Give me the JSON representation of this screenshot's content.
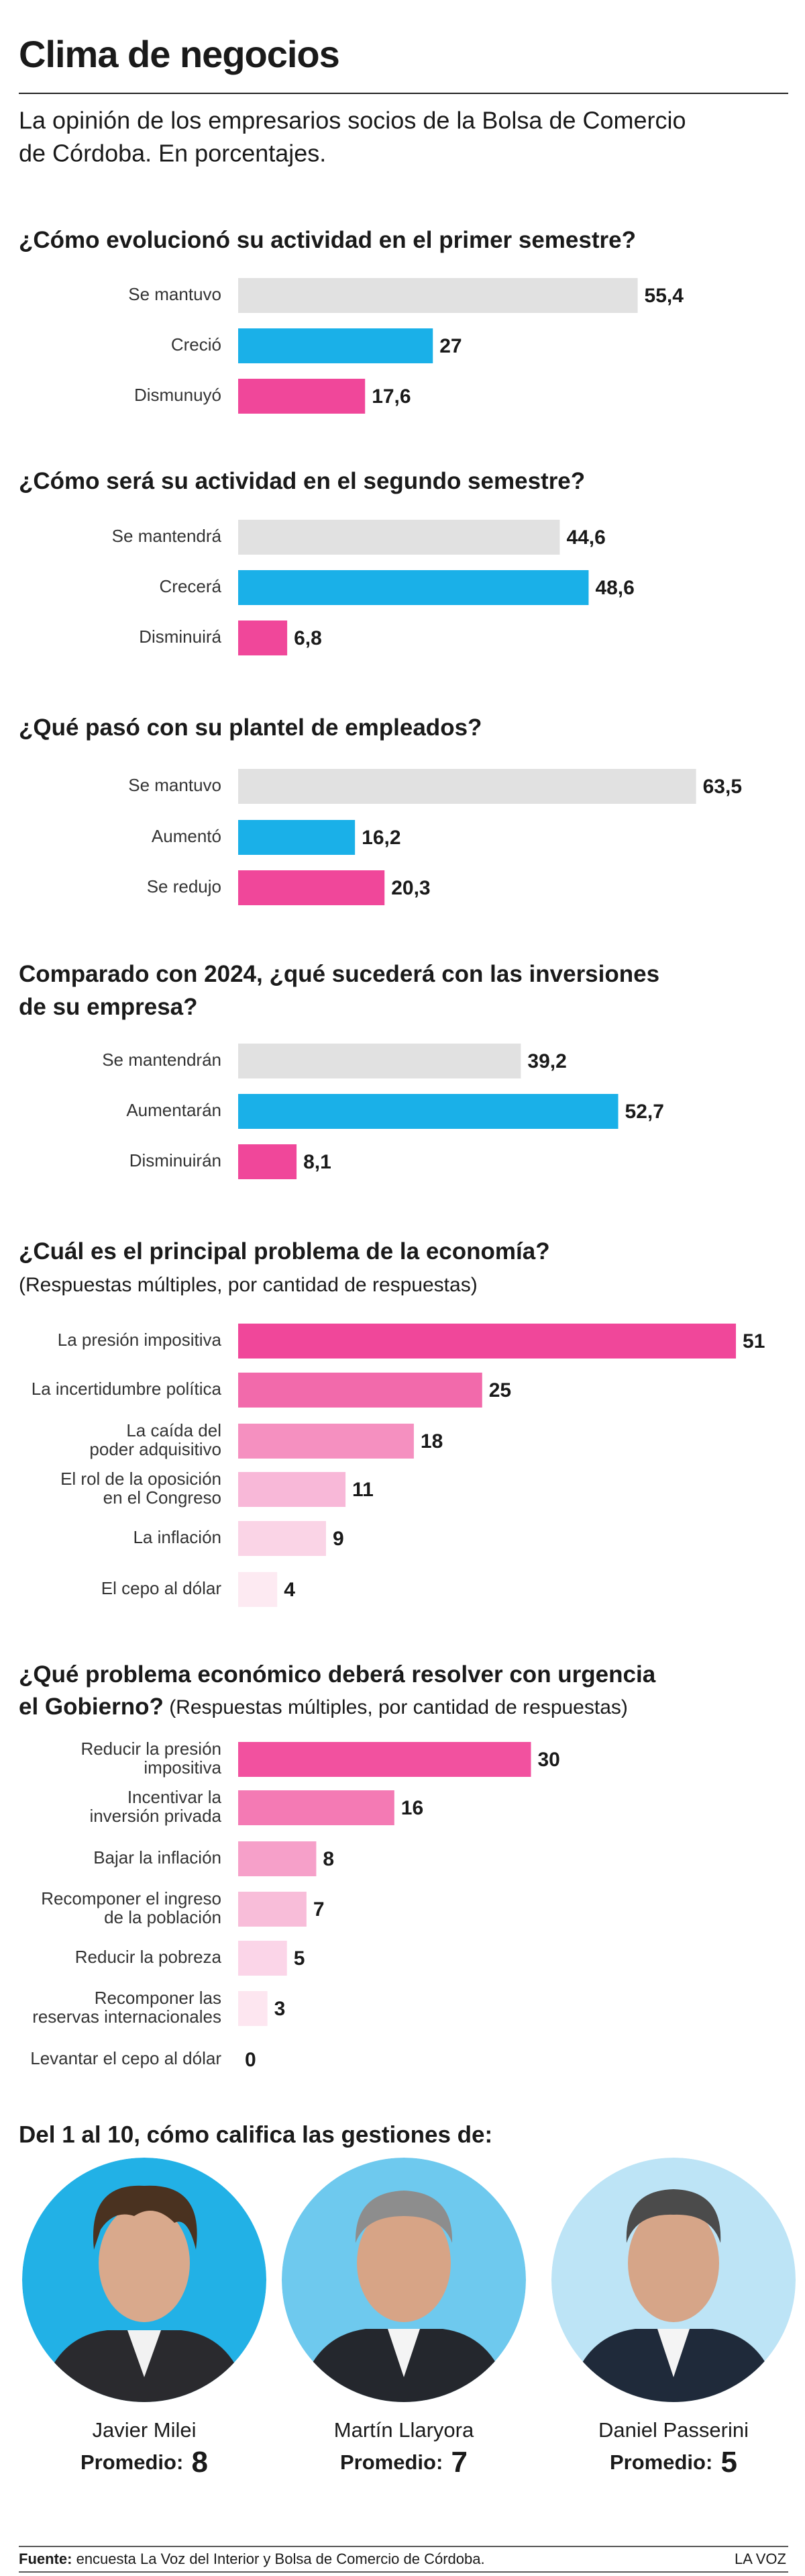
{
  "header": {
    "title": "Clima de negocios",
    "subtitle": [
      "La opinión de los empresarios socios de la Bolsa de Comercio",
      "de Córdoba. En porcentajes."
    ]
  },
  "chart_data": [
    {
      "type": "bar",
      "title": [
        "¿Cómo evolucionó su actividad en el primer semestre?"
      ],
      "categories": [
        "Se mantuvo",
        "Creció",
        "Dismunuyó"
      ],
      "values": [
        55.4,
        27,
        17.6
      ],
      "value_labels": [
        "55,4",
        "27",
        "17,6"
      ],
      "colors": [
        "#e1e1e1",
        "#1ab0e8",
        "#f0479a"
      ]
    },
    {
      "type": "bar",
      "title": [
        "¿Cómo será su actividad en el segundo semestre?"
      ],
      "categories": [
        "Se mantendrá",
        "Crecerá",
        "Disminuirá"
      ],
      "values": [
        44.6,
        48.6,
        6.8
      ],
      "value_labels": [
        "44,6",
        "48,6",
        "6,8"
      ],
      "colors": [
        "#e1e1e1",
        "#1ab0e8",
        "#f0479a"
      ]
    },
    {
      "type": "bar",
      "title": [
        "¿Qué pasó con su plantel de empleados?"
      ],
      "categories": [
        "Se mantuvo",
        "Aumentó",
        "Se redujo"
      ],
      "values": [
        63.5,
        16.2,
        20.3
      ],
      "value_labels": [
        "63,5",
        "16,2",
        "20,3"
      ],
      "colors": [
        "#e1e1e1",
        "#1ab0e8",
        "#f0479a"
      ]
    },
    {
      "type": "bar",
      "title": [
        "Comparado con 2024, ¿qué sucederá con las inversiones",
        "de su empresa?"
      ],
      "categories": [
        "Se mantendrán",
        "Aumentarán",
        "Disminuirán"
      ],
      "values": [
        39.2,
        52.7,
        8.1
      ],
      "value_labels": [
        "39,2",
        "52,7",
        "8,1"
      ],
      "colors": [
        "#e1e1e1",
        "#1ab0e8",
        "#f0479a"
      ]
    },
    {
      "type": "bar",
      "title": [
        "¿Cuál es el principal problema de la economía?"
      ],
      "subtitle": "(Respuestas múltiples, por cantidad de respuestas)",
      "categories": [
        "La presión impositiva",
        "La incertidumbre política",
        [
          "La caída del",
          "poder adquisitivo"
        ],
        [
          "El rol de la oposición",
          "en el Congreso"
        ],
        "La inflación",
        "El cepo al dólar"
      ],
      "values": [
        51,
        25,
        18,
        11,
        9,
        4
      ],
      "colors": [
        "#f0479a",
        "#f26aab",
        "#f590c0",
        "#f8b8d8",
        "#fad4e6",
        "#fdeaf2"
      ]
    },
    {
      "type": "bar",
      "title": [
        "¿Qué problema económico deberá resolver con urgencia",
        "el Gobierno?"
      ],
      "subtitle": "(Respuestas múltiples, por cantidad de respuestas)",
      "categories": [
        [
          "Reducir la presión",
          "impositiva"
        ],
        [
          "Incentivar la",
          "inversión privada"
        ],
        "Bajar la inflación",
        [
          "Recomponer el ingreso",
          "de la población"
        ],
        "Reducir la pobreza",
        [
          "Recomponer las",
          "reservas internacionales"
        ],
        "Levantar el cepo al dólar"
      ],
      "values": [
        30,
        16,
        8,
        7,
        5,
        3,
        0
      ],
      "colors": [
        "#f2519f",
        "#f47ab4",
        "#f6a0c9",
        "#f8bdd9",
        "#fbd5e8",
        "#fde6f0",
        "#fde6f0"
      ]
    }
  ],
  "ratings": {
    "title": "Del 1 al 10, cómo califica las gestiones de:",
    "people": [
      {
        "name": "Javier Milei",
        "label": "Promedio:",
        "score": 8
      },
      {
        "name": "Martín Llaryora",
        "label": "Promedio:",
        "score": 7
      },
      {
        "name": "Daniel Passerini",
        "label": "Promedio:",
        "score": 5
      }
    ]
  },
  "footer": {
    "source_label": "Fuente:",
    "source": "encuesta La Voz del Interior y Bolsa de Comercio de Córdoba.",
    "brand": "LA VOZ"
  }
}
